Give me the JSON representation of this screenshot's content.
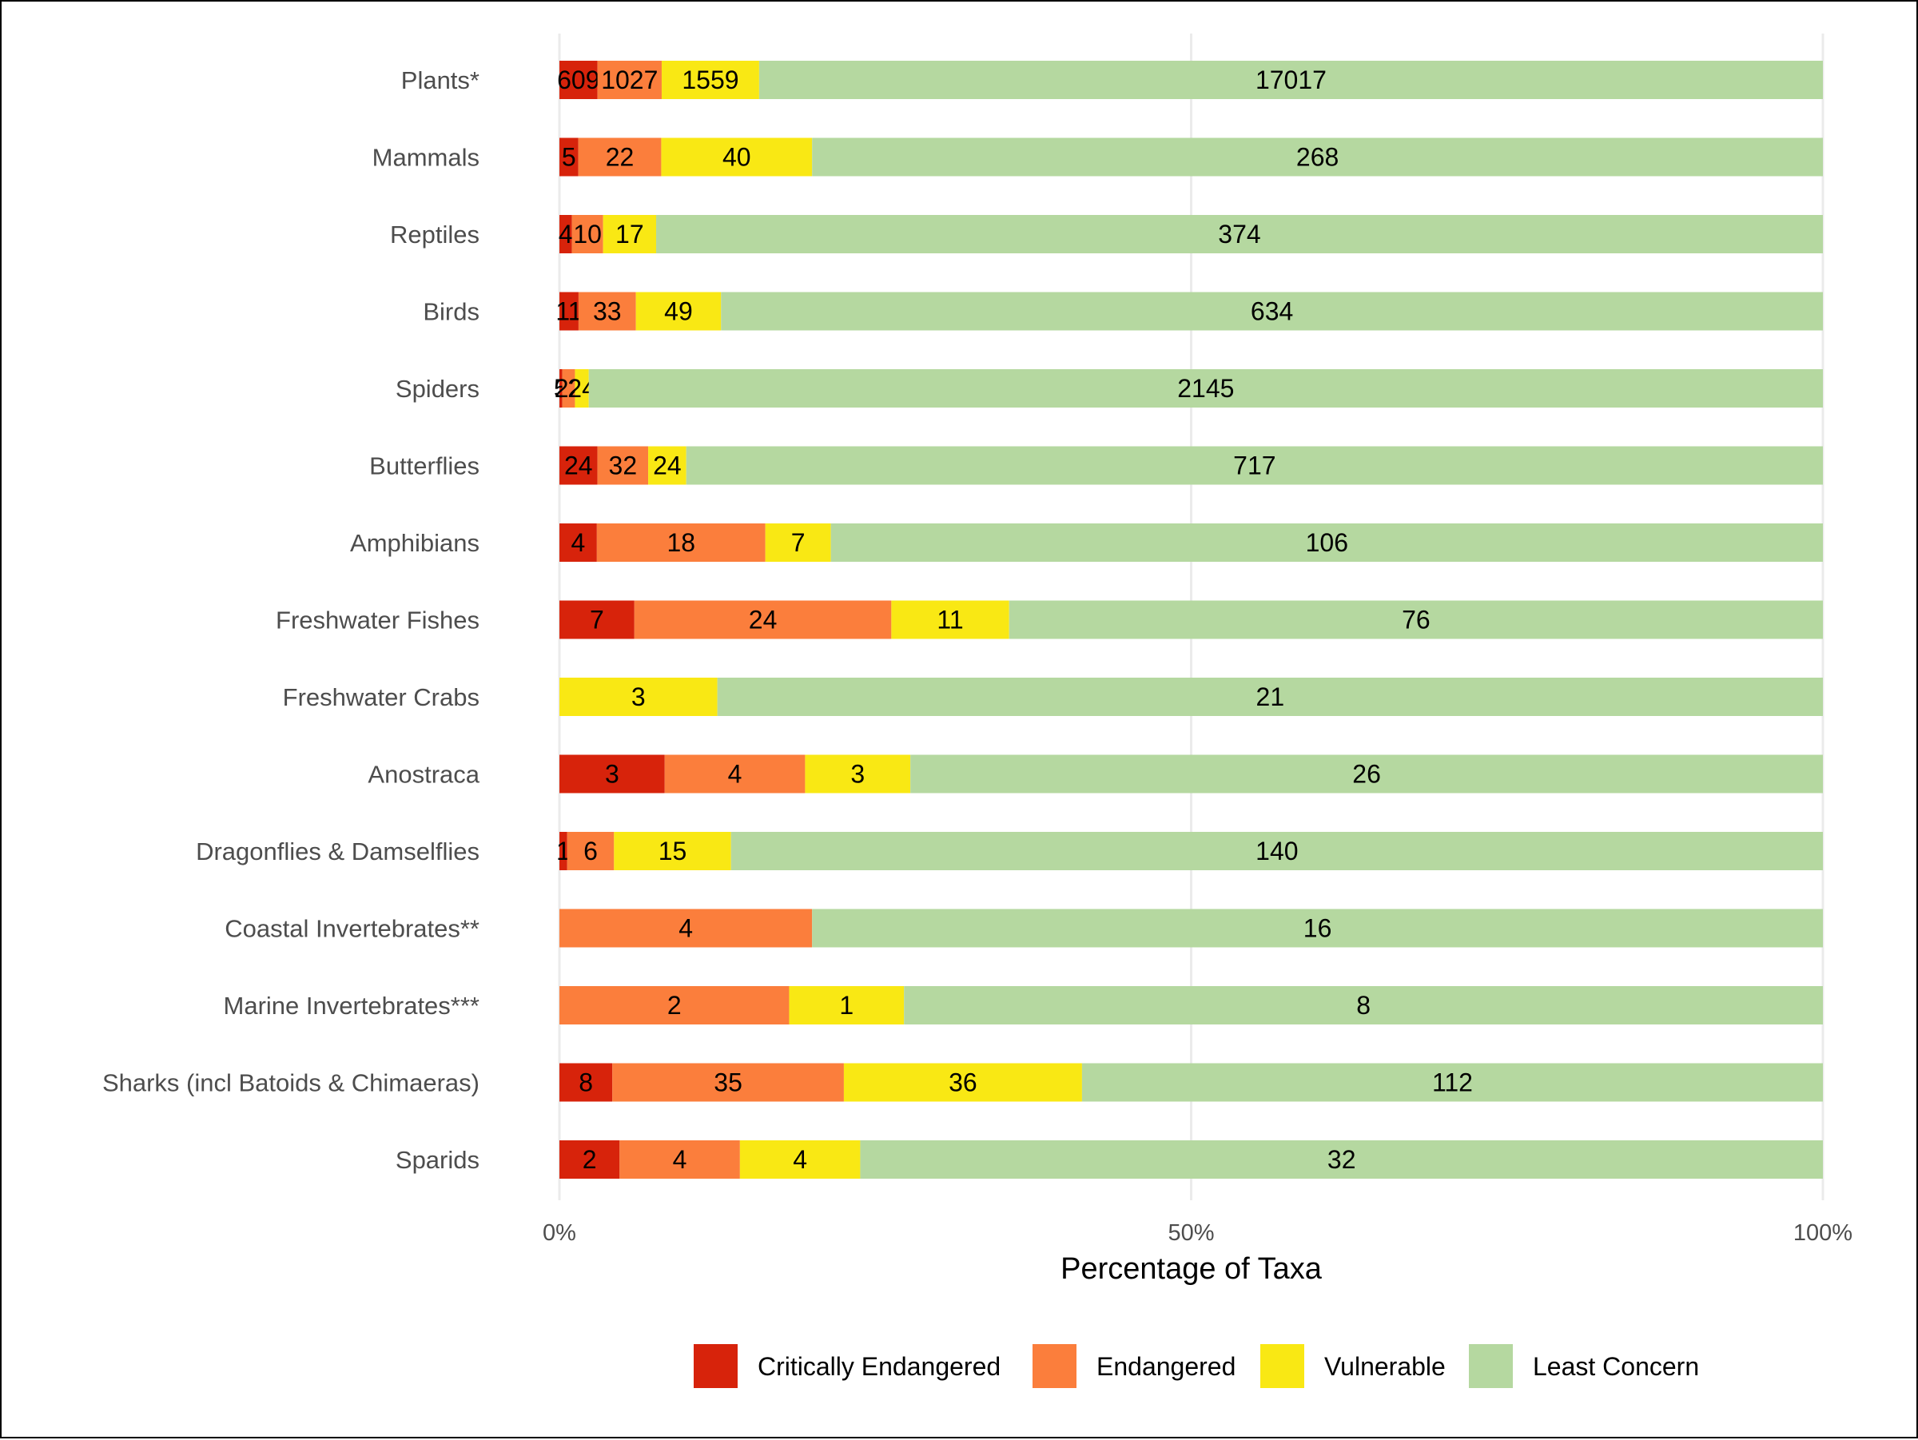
{
  "chart_data": {
    "type": "bar",
    "orientation": "horizontal",
    "stacked": true,
    "normalized": true,
    "categories": [
      "Plants*",
      "Mammals",
      "Reptiles",
      "Birds",
      "Spiders",
      "Butterflies",
      "Amphibians",
      "Freshwater Fishes",
      "Freshwater Crabs",
      "Anostraca",
      "Dragonflies & Damselflies",
      "Coastal Invertebrates**",
      "Marine Invertebrates***",
      "Sharks (incl Batoids & Chimaeras)",
      "Sparids"
    ],
    "series": [
      {
        "name": "Critically Endangered",
        "color": "#d7230b",
        "values": [
          609,
          5,
          4,
          11,
          5,
          24,
          4,
          7,
          0,
          3,
          1,
          0,
          0,
          8,
          2
        ]
      },
      {
        "name": "Endangered",
        "color": "#fb7e3c",
        "values": [
          1027,
          22,
          10,
          33,
          22,
          32,
          18,
          24,
          0,
          4,
          6,
          4,
          2,
          35,
          4
        ]
      },
      {
        "name": "Vulnerable",
        "color": "#f9e814",
        "values": [
          1559,
          40,
          17,
          49,
          24,
          24,
          7,
          11,
          3,
          3,
          15,
          0,
          1,
          36,
          4
        ]
      },
      {
        "name": "Least Concern",
        "color": "#b5d8a0",
        "values": [
          17017,
          268,
          374,
          634,
          2145,
          717,
          106,
          76,
          21,
          26,
          140,
          16,
          8,
          112,
          32
        ]
      }
    ],
    "xlabel": "Percentage of Taxa",
    "ylabel": "",
    "xlim": [
      0,
      100
    ],
    "x_ticks": [
      "0%",
      "50%",
      "100%"
    ],
    "grid": "vertical",
    "legend_position": "bottom"
  }
}
